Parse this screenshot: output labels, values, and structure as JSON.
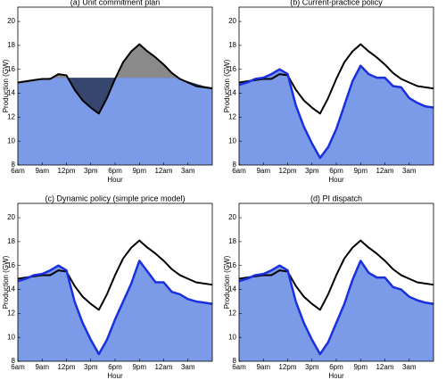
{
  "chart_data": [
    {
      "type": "area",
      "title": "(a) Unit commitment plan",
      "xlabel": "Hour",
      "ylabel": "Production (GW)",
      "fill_between": true,
      "x": [
        0,
        1,
        2,
        3,
        4,
        5,
        6,
        7,
        8,
        9,
        10,
        11,
        12,
        13,
        14,
        15,
        16,
        17,
        18,
        19,
        20,
        21,
        22,
        23,
        24
      ],
      "xlim": [
        0,
        24
      ],
      "xticks": [
        {
          "value": 0,
          "label": "6am"
        },
        {
          "value": 3,
          "label": "9am"
        },
        {
          "value": 6,
          "label": "12pm"
        },
        {
          "value": 9,
          "label": "3pm"
        },
        {
          "value": 12,
          "label": "6pm"
        },
        {
          "value": 15,
          "label": "9pm"
        },
        {
          "value": 18,
          "label": "12am"
        },
        {
          "value": 21,
          "label": "3am"
        }
      ],
      "ylim": [
        8,
        21.2
      ],
      "yticks": [
        8,
        10,
        12,
        14,
        16,
        18,
        20
      ],
      "series": [
        {
          "color": "#000000",
          "values": [
            14.9,
            15.0,
            15.1,
            15.2,
            15.2,
            15.6,
            15.5,
            14.3,
            13.4,
            12.8,
            12.3,
            13.6,
            15.2,
            16.6,
            17.5,
            18.1,
            17.5,
            17.0,
            16.4,
            15.7,
            15.2,
            14.9,
            14.6,
            14.5,
            14.4
          ]
        },
        {
          "color": "#7b9be8",
          "line": false,
          "values": [
            14.8,
            14.9,
            15.0,
            15.2,
            15.3,
            15.3,
            15.3,
            15.3,
            15.3,
            15.3,
            15.3,
            15.3,
            15.3,
            15.3,
            15.3,
            15.3,
            15.3,
            15.3,
            15.3,
            15.3,
            15.2,
            15.0,
            14.8,
            14.6,
            14.5
          ]
        }
      ]
    },
    {
      "type": "area",
      "title": "(b) Current-practice policy",
      "xlabel": "Hour",
      "ylabel": "Production (GW)",
      "fill_between": false,
      "x": [
        0,
        1,
        2,
        3,
        4,
        5,
        6,
        7,
        8,
        9,
        10,
        11,
        12,
        13,
        14,
        15,
        16,
        17,
        18,
        19,
        20,
        21,
        22,
        23,
        24
      ],
      "xlim": [
        0,
        24
      ],
      "xticks": [
        {
          "value": 0,
          "label": "6am"
        },
        {
          "value": 3,
          "label": "9am"
        },
        {
          "value": 6,
          "label": "12pm"
        },
        {
          "value": 9,
          "label": "3pm"
        },
        {
          "value": 12,
          "label": "6pm"
        },
        {
          "value": 15,
          "label": "9pm"
        },
        {
          "value": 18,
          "label": "12am"
        },
        {
          "value": 21,
          "label": "3am"
        }
      ],
      "ylim": [
        8,
        21.2
      ],
      "yticks": [
        8,
        10,
        12,
        14,
        16,
        18,
        20
      ],
      "series": [
        {
          "color": "#000000",
          "values": [
            14.9,
            15.0,
            15.1,
            15.2,
            15.2,
            15.6,
            15.5,
            14.3,
            13.4,
            12.8,
            12.3,
            13.6,
            15.2,
            16.6,
            17.5,
            18.1,
            17.5,
            17.0,
            16.4,
            15.7,
            15.2,
            14.9,
            14.6,
            14.5,
            14.4
          ]
        },
        {
          "color": "#1a2fe0",
          "fill": "#7b9be8",
          "values": [
            14.7,
            14.9,
            15.2,
            15.3,
            15.6,
            16.0,
            15.6,
            13.0,
            11.2,
            9.8,
            8.6,
            9.5,
            11.0,
            13.0,
            15.0,
            16.3,
            15.6,
            15.3,
            15.3,
            14.6,
            14.5,
            13.6,
            13.2,
            12.9,
            12.8
          ]
        }
      ]
    },
    {
      "type": "area",
      "title": "(c) Dynamic policy (simple price model)",
      "xlabel": "Hour",
      "ylabel": "Production (GW)",
      "fill_between": false,
      "x": [
        0,
        1,
        2,
        3,
        4,
        5,
        6,
        7,
        8,
        9,
        10,
        11,
        12,
        13,
        14,
        15,
        16,
        17,
        18,
        19,
        20,
        21,
        22,
        23,
        24
      ],
      "xlim": [
        0,
        24
      ],
      "xticks": [
        {
          "value": 0,
          "label": "6am"
        },
        {
          "value": 3,
          "label": "9am"
        },
        {
          "value": 6,
          "label": "12pm"
        },
        {
          "value": 9,
          "label": "3pm"
        },
        {
          "value": 12,
          "label": "6pm"
        },
        {
          "value": 15,
          "label": "9pm"
        },
        {
          "value": 18,
          "label": "12am"
        },
        {
          "value": 21,
          "label": "3am"
        }
      ],
      "ylim": [
        8,
        21.2
      ],
      "yticks": [
        8,
        10,
        12,
        14,
        16,
        18,
        20
      ],
      "series": [
        {
          "color": "#000000",
          "values": [
            14.9,
            15.0,
            15.1,
            15.2,
            15.2,
            15.6,
            15.5,
            14.3,
            13.4,
            12.8,
            12.3,
            13.6,
            15.2,
            16.6,
            17.5,
            18.1,
            17.5,
            17.0,
            16.4,
            15.7,
            15.2,
            14.9,
            14.6,
            14.5,
            14.4
          ]
        },
        {
          "color": "#1a2fe0",
          "fill": "#7b9be8",
          "values": [
            14.7,
            14.9,
            15.2,
            15.3,
            15.6,
            16.0,
            15.6,
            13.0,
            11.2,
            9.8,
            8.6,
            9.8,
            11.5,
            13.0,
            14.5,
            16.4,
            15.5,
            14.6,
            14.6,
            13.8,
            13.6,
            13.2,
            13.0,
            12.9,
            12.8
          ]
        }
      ]
    },
    {
      "type": "area",
      "title": "(d) PI dispatch",
      "xlabel": "Hour",
      "ylabel": "Production (GW)",
      "fill_between": false,
      "x": [
        0,
        1,
        2,
        3,
        4,
        5,
        6,
        7,
        8,
        9,
        10,
        11,
        12,
        13,
        14,
        15,
        16,
        17,
        18,
        19,
        20,
        21,
        22,
        23,
        24
      ],
      "xlim": [
        0,
        24
      ],
      "xticks": [
        {
          "value": 0,
          "label": "6am"
        },
        {
          "value": 3,
          "label": "9am"
        },
        {
          "value": 6,
          "label": "12pm"
        },
        {
          "value": 9,
          "label": "3pm"
        },
        {
          "value": 12,
          "label": "6pm"
        },
        {
          "value": 15,
          "label": "9pm"
        },
        {
          "value": 18,
          "label": "12am"
        },
        {
          "value": 21,
          "label": "3am"
        }
      ],
      "ylim": [
        8,
        21.2
      ],
      "yticks": [
        8,
        10,
        12,
        14,
        16,
        18,
        20
      ],
      "series": [
        {
          "color": "#000000",
          "values": [
            14.9,
            15.0,
            15.1,
            15.2,
            15.2,
            15.6,
            15.5,
            14.3,
            13.4,
            12.8,
            12.3,
            13.6,
            15.2,
            16.6,
            17.5,
            18.1,
            17.5,
            17.0,
            16.4,
            15.7,
            15.2,
            14.9,
            14.6,
            14.5,
            14.4
          ]
        },
        {
          "color": "#1a2fe0",
          "fill": "#7b9be8",
          "values": [
            14.7,
            14.9,
            15.2,
            15.3,
            15.6,
            16.0,
            15.6,
            13.0,
            11.2,
            9.8,
            8.6,
            9.6,
            11.2,
            12.8,
            14.8,
            16.4,
            15.4,
            15.0,
            15.0,
            14.2,
            14.0,
            13.4,
            13.1,
            12.9,
            12.8
          ]
        }
      ]
    }
  ]
}
